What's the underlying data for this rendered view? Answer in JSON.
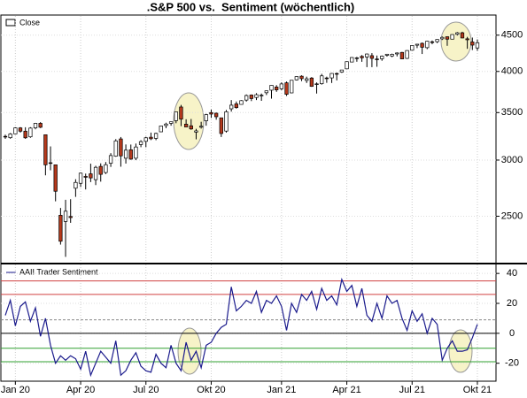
{
  "chart_data": [
    {
      "type": "candlestick",
      "title": ".S&P 500 vs.  Sentiment (wöchentlich)",
      "series_name": "Close",
      "log_scale": true,
      "ylim": [
        2150,
        4790
      ],
      "yticks": [
        2500,
        3000,
        3500,
        4000,
        4500
      ],
      "grid": true,
      "up_color": "#ffffff",
      "down_color": "#b5391c",
      "ohlc": [
        [
          3240,
          3258,
          3214,
          3235
        ],
        [
          3226,
          3275,
          3215,
          3265
        ],
        [
          3266,
          3337,
          3262,
          3330
        ],
        [
          3330,
          3338,
          3280,
          3295
        ],
        [
          3295,
          3337,
          3214,
          3225
        ],
        [
          3235,
          3338,
          3225,
          3328
        ],
        [
          3330,
          3385,
          3315,
          3380
        ],
        [
          3380,
          3393,
          3328,
          3337
        ],
        [
          3257,
          3260,
          2855,
          2954
        ],
        [
          2974,
          3136,
          2902,
          2972
        ],
        [
          2954,
          2954,
          2624,
          2711
        ],
        [
          2508,
          2568,
          2280,
          2305
        ],
        [
          2458,
          2637,
          2191,
          2541
        ],
        [
          2498,
          2642,
          2447,
          2489
        ],
        [
          2738,
          2819,
          2662,
          2790
        ],
        [
          2782,
          2880,
          2749,
          2875
        ],
        [
          2845,
          2871,
          2727,
          2837
        ],
        [
          2869,
          2965,
          2793,
          2831
        ],
        [
          2815,
          2945,
          2766,
          2930
        ],
        [
          2939,
          2968,
          2797,
          2864
        ],
        [
          2881,
          2981,
          2867,
          2955
        ],
        [
          2969,
          3068,
          2934,
          3044
        ],
        [
          3038,
          3211,
          3032,
          3193
        ],
        [
          3213,
          3233,
          2936,
          3041
        ],
        [
          3018,
          3156,
          2966,
          3098
        ],
        [
          3102,
          3155,
          3003,
          3009
        ],
        [
          3018,
          3165,
          2999,
          3130
        ],
        [
          3155,
          3200,
          3128,
          3185
        ],
        [
          3188,
          3235,
          3128,
          3225
        ],
        [
          3231,
          3280,
          3201,
          3215
        ],
        [
          3219,
          3279,
          3200,
          3271
        ],
        [
          3288,
          3352,
          3284,
          3351
        ],
        [
          3356,
          3387,
          3327,
          3372
        ],
        [
          3380,
          3399,
          3354,
          3397
        ],
        [
          3410,
          3508,
          3381,
          3508
        ],
        [
          3564,
          3588,
          3349,
          3426
        ],
        [
          3371,
          3425,
          3343,
          3340
        ],
        [
          3353,
          3428,
          3310,
          3319
        ],
        [
          3285,
          3320,
          3209,
          3298
        ],
        [
          3338,
          3397,
          3323,
          3348
        ],
        [
          3408,
          3486,
          3354,
          3477
        ],
        [
          3500,
          3534,
          3440,
          3483
        ],
        [
          3493,
          3500,
          3420,
          3453
        ],
        [
          3441,
          3441,
          3233,
          3270
        ],
        [
          3296,
          3530,
          3280,
          3509
        ],
        [
          3543,
          3645,
          3511,
          3585
        ],
        [
          3600,
          3628,
          3545,
          3557
        ],
        [
          3594,
          3644,
          3594,
          3638
        ],
        [
          3645,
          3712,
          3627,
          3699
        ],
        [
          3705,
          3712,
          3633,
          3663
        ],
        [
          3676,
          3727,
          3645,
          3709
        ],
        [
          3694,
          3723,
          3636,
          3703
        ],
        [
          3733,
          3760,
          3705,
          3756
        ],
        [
          3764,
          3827,
          3662,
          3824
        ],
        [
          3803,
          3826,
          3744,
          3768
        ],
        [
          3781,
          3860,
          3765,
          3841
        ],
        [
          3855,
          3871,
          3694,
          3714
        ],
        [
          3731,
          3887,
          3726,
          3887
        ],
        [
          3892,
          3937,
          3884,
          3934
        ],
        [
          3939,
          3950,
          3876,
          3907
        ],
        [
          3885,
          3933,
          3853,
          3906
        ],
        [
          3915,
          3928,
          3805,
          3811
        ],
        [
          3842,
          3860,
          3723,
          3842
        ],
        [
          3844,
          3969,
          3832,
          3943
        ],
        [
          3916,
          3933,
          3855,
          3913
        ],
        [
          3917,
          3978,
          3853,
          3974
        ],
        [
          3973,
          3986,
          3885,
          3972
        ],
        [
          3992,
          4019,
          3981,
          4019
        ],
        [
          4034,
          4129,
          4034,
          4129
        ],
        [
          4124,
          4191,
          4124,
          4185
        ],
        [
          4179,
          4194,
          4128,
          4180
        ],
        [
          4201,
          4218,
          4127,
          4181
        ],
        [
          4192,
          4238,
          4056,
          4233
        ],
        [
          4210,
          4245,
          4056,
          4173
        ],
        [
          4165,
          4212,
          4061,
          4155
        ],
        [
          4168,
          4213,
          4141,
          4204
        ],
        [
          4216,
          4234,
          4197,
          4230
        ],
        [
          4206,
          4238,
          4190,
          4229
        ],
        [
          4234,
          4255,
          4200,
          4247
        ],
        [
          4255,
          4262,
          4165,
          4166
        ],
        [
          4173,
          4286,
          4165,
          4281
        ],
        [
          4285,
          4356,
          4281,
          4352
        ],
        [
          4356,
          4372,
          4315,
          4370
        ],
        [
          4382,
          4394,
          4233,
          4327
        ],
        [
          4321,
          4416,
          4300,
          4412
        ],
        [
          4404,
          4423,
          4369,
          4395
        ],
        [
          4406,
          4440,
          4385,
          4437
        ],
        [
          4447,
          4480,
          4430,
          4468
        ],
        [
          4477,
          4480,
          4347,
          4442
        ],
        [
          4442,
          4513,
          4440,
          4509
        ],
        [
          4513,
          4546,
          4495,
          4535
        ],
        [
          4535,
          4550,
          4455,
          4459
        ],
        [
          4447,
          4475,
          4305,
          4433
        ],
        [
          4402,
          4465,
          4288,
          4357
        ],
        [
          4317,
          4438,
          4278,
          4391
        ]
      ]
    },
    {
      "type": "line",
      "ylim": [
        -32,
        46
      ],
      "yticks": [
        -20,
        0,
        20,
        40
      ],
      "grid": true,
      "categories": [
        null,
        null,
        "Jan 20",
        null,
        null,
        null,
        null,
        null,
        null,
        null,
        null,
        null,
        null,
        null,
        null,
        "Apr 20",
        null,
        null,
        null,
        null,
        null,
        null,
        null,
        null,
        null,
        null,
        null,
        null,
        "Jul 20",
        null,
        null,
        null,
        null,
        null,
        null,
        null,
        null,
        null,
        null,
        null,
        null,
        "Okt 20",
        null,
        null,
        null,
        null,
        null,
        null,
        null,
        null,
        null,
        null,
        null,
        null,
        null,
        "Jan 21",
        null,
        null,
        null,
        null,
        null,
        null,
        null,
        null,
        null,
        null,
        null,
        null,
        "Apr 21",
        null,
        null,
        null,
        null,
        null,
        null,
        null,
        null,
        null,
        null,
        null,
        null,
        "Jul 21",
        null,
        null,
        null,
        null,
        null,
        null,
        null,
        null,
        null,
        null,
        null,
        null,
        "Okt 21"
      ],
      "series": [
        {
          "name": "AAII Trader Sentiment",
          "color": "#1a1a8c",
          "values": [
            12,
            22,
            5,
            18,
            21,
            8,
            17,
            -2,
            10,
            -8,
            -20,
            -15,
            -18,
            -15,
            -17,
            -24,
            -12,
            -28,
            -20,
            -12,
            -16,
            -20,
            -5,
            -28,
            -25,
            -18,
            -13,
            -22,
            -25,
            -26,
            -14,
            -20,
            -23,
            -8,
            -20,
            -25,
            -6,
            -18,
            -12,
            -23,
            -8,
            -6,
            0,
            4,
            6,
            31,
            15,
            18,
            22,
            20,
            28,
            14,
            22,
            20,
            25,
            18,
            2,
            20,
            14,
            26,
            22,
            28,
            16,
            30,
            22,
            25,
            19,
            36,
            28,
            32,
            18,
            30,
            12,
            8,
            20,
            10,
            25,
            20,
            22,
            10,
            2,
            15,
            8,
            13,
            0,
            10,
            6,
            -18,
            -10,
            -5,
            -12,
            -12,
            -11,
            -3,
            6
          ]
        }
      ],
      "ref_lines": [
        {
          "value": 35,
          "color": "#d04040"
        },
        {
          "value": 26,
          "color": "#d04040"
        },
        {
          "value": 9,
          "color": "#888888",
          "dashed": true
        },
        {
          "value": 0,
          "color": "#000000"
        },
        {
          "value": -10,
          "color": "#30a030"
        },
        {
          "value": -19,
          "color": "#30a030"
        }
      ]
    }
  ]
}
